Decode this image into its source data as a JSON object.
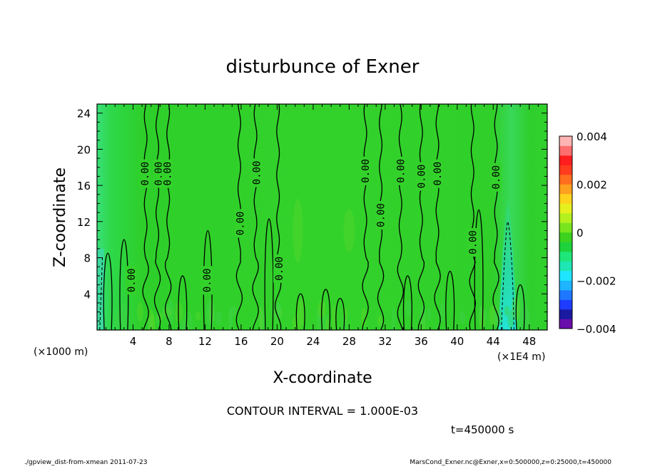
{
  "chart_data": {
    "type": "heatmap",
    "title": "disturbunce of Exner",
    "xlabel": "X-coordinate",
    "ylabel": "Z-coordinate",
    "x_unit_left": "(×1000 m)",
    "x_unit_right": "(×1E4 m)",
    "xlim": [
      0,
      50
    ],
    "ylim": [
      0,
      25
    ],
    "x_ticks": [
      4,
      8,
      12,
      16,
      20,
      24,
      28,
      32,
      36,
      40,
      44,
      48
    ],
    "y_ticks": [
      4,
      8,
      12,
      16,
      20,
      24
    ],
    "x_tick_labels": [
      "4",
      "8",
      "12",
      "16",
      "20",
      "24",
      "28",
      "32",
      "36",
      "40",
      "44",
      "48"
    ],
    "y_tick_labels": [
      "4",
      "8",
      "12",
      "16",
      "20",
      "24"
    ],
    "colorbar": {
      "range": [
        -0.004,
        0.004
      ],
      "tick_labels": [
        "0.004",
        "0.002",
        "0",
        "−0.002",
        "−0.004"
      ],
      "tick_values": [
        0.004,
        0.002,
        0,
        -0.002,
        -0.004
      ],
      "colors": [
        "#6a0dad",
        "#1a1aa0",
        "#1e3cff",
        "#1e78ff",
        "#1eb4ff",
        "#1ee6ff",
        "#1ee6b4",
        "#1ee678",
        "#1ed23c",
        "#3cd21e",
        "#78e61e",
        "#b4f01e",
        "#e6f01e",
        "#ffd21e",
        "#ffa01e",
        "#ff6e1e",
        "#ff3c1e",
        "#ff1e1e",
        "#ff6e6e",
        "#ffb4b4"
      ]
    },
    "contour_labels": [
      {
        "text": "0.00",
        "x": 3.8,
        "z": 5.5
      },
      {
        "text": "0.00",
        "x": 5.3,
        "z": 17.3
      },
      {
        "text": "0.00",
        "x": 6.8,
        "z": 17.3
      },
      {
        "text": "0.00",
        "x": 7.8,
        "z": 17.3
      },
      {
        "text": "0.00",
        "x": 12.2,
        "z": 5.5
      },
      {
        "text": "0.00",
        "x": 15.9,
        "z": 11.8
      },
      {
        "text": "0.00",
        "x": 17.7,
        "z": 17.4
      },
      {
        "text": "0.00",
        "x": 20.2,
        "z": 6.8
      },
      {
        "text": "0.00",
        "x": 29.8,
        "z": 17.6
      },
      {
        "text": "0.00",
        "x": 31.5,
        "z": 12.7
      },
      {
        "text": "0.00",
        "x": 33.7,
        "z": 17.6
      },
      {
        "text": "0.00",
        "x": 36.0,
        "z": 17.0
      },
      {
        "text": "0.00",
        "x": 37.8,
        "z": 17.3
      },
      {
        "text": "0.00",
        "x": 41.7,
        "z": 9.7
      },
      {
        "text": "0.00",
        "x": 44.3,
        "z": 16.9
      }
    ],
    "contour_interval_text": "CONTOUR INTERVAL = 1.000E-03",
    "time_text": "t=450000 s"
  },
  "footer": {
    "left": "./gpview_dist-from-xmean  2011-07-23",
    "right": "MarsCond_Exner.nc@Exner,x=0:500000,z=0:25000,t=450000"
  }
}
